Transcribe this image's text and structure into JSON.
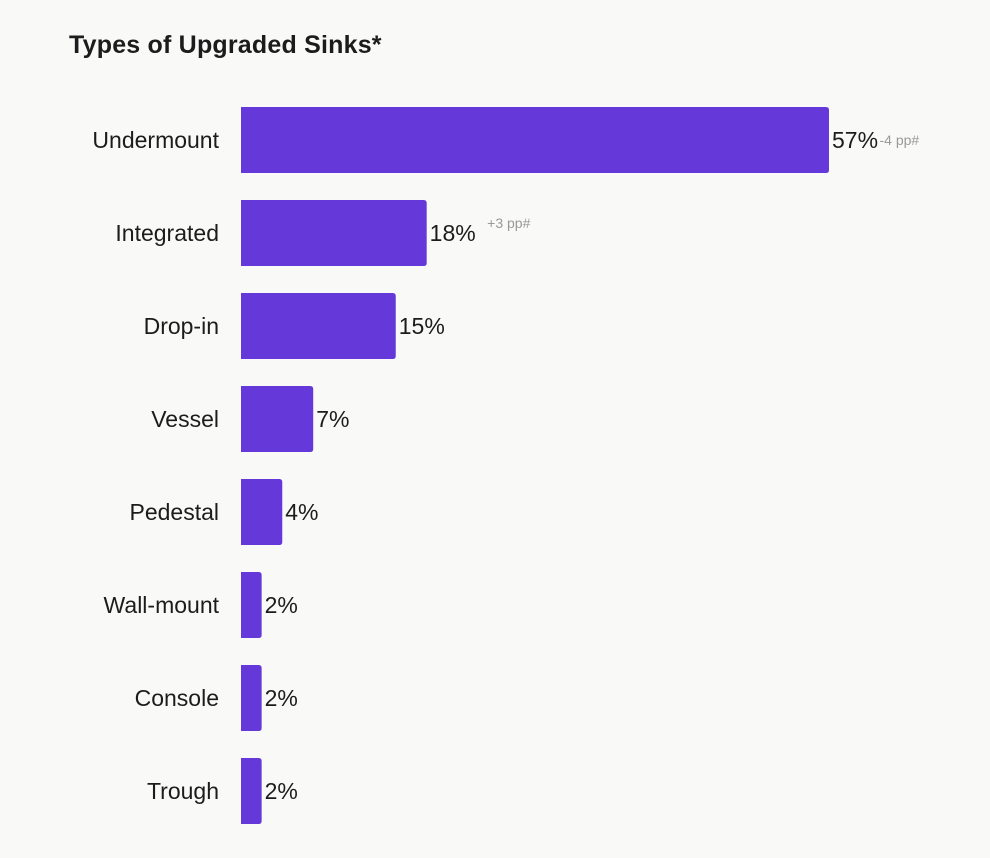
{
  "chart_data": {
    "type": "bar",
    "orientation": "horizontal",
    "title": "Types of Upgraded Sinks*",
    "xlabel": "",
    "ylabel": "",
    "categories": [
      "Undermount",
      "Integrated",
      "Drop-in",
      "Vessel",
      "Pedestal",
      "Wall-mount",
      "Console",
      "Trough"
    ],
    "values": [
      57,
      18,
      15,
      7,
      4,
      2,
      2,
      2
    ],
    "value_labels": [
      "57%",
      "18%",
      "15%",
      "7%",
      "4%",
      "2%",
      "2%",
      "2%"
    ],
    "change_labels": [
      "-4 pp#",
      "+3 pp#",
      "",
      "",
      "",
      "",
      "",
      ""
    ],
    "xlim": [
      0,
      57
    ],
    "grid": false,
    "legend": "none",
    "bar_color": "#6438d9",
    "change_color": "#9a9a94"
  }
}
